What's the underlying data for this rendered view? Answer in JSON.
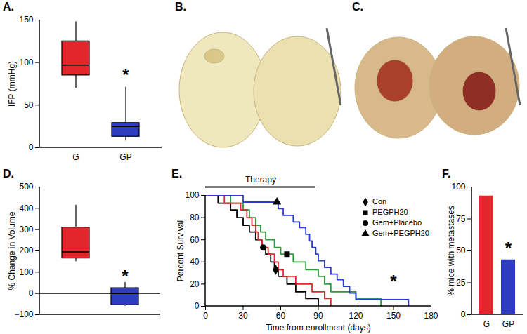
{
  "chart_data": [
    {
      "type": "box",
      "title": "A.",
      "categories": [
        "G",
        "GP"
      ],
      "colors": [
        "#e4262c",
        "#2e3dbf"
      ],
      "boxes": [
        {
          "min": 70,
          "q1": 85,
          "median": 97,
          "q3": 125,
          "max": 148
        },
        {
          "min": 8,
          "q1": 13,
          "median": 25,
          "q3": 29,
          "max": 71
        }
      ],
      "y_label": "IFP (mmHg)",
      "ylim": [
        0,
        150
      ],
      "yticks": [
        0,
        50,
        100,
        150
      ],
      "annotations": [
        {
          "text": "*",
          "x": "GP",
          "y": 85
        }
      ]
    },
    {
      "type": "image",
      "title": "B."
    },
    {
      "type": "image",
      "title": "C."
    },
    {
      "type": "box",
      "title": "D.",
      "categories": [
        "G",
        "GP"
      ],
      "colors": [
        "#e4262c",
        "#2e3dbf"
      ],
      "boxes": [
        {
          "min": 150,
          "q1": 165,
          "median": 195,
          "q3": 310,
          "max": 415
        },
        {
          "min": -60,
          "q1": -55,
          "median": 0,
          "q3": 25,
          "max": 52
        }
      ],
      "y_label": "% Change in Volume",
      "ylim": [
        -100,
        500
      ],
      "yticks": [
        -100,
        0,
        100,
        200,
        300,
        400,
        500
      ],
      "hline": 0,
      "tick_labels": "y",
      "annotations": [
        {
          "text": "*",
          "x": "GP",
          "y": 80
        }
      ]
    },
    {
      "type": "line",
      "title": "E.",
      "x_label": "Time from enrollment (days)",
      "y_label": "Percent Survival",
      "xlim": [
        0,
        180
      ],
      "xticks": [
        0,
        30,
        60,
        90,
        120,
        150,
        180
      ],
      "ylim": [
        0,
        100
      ],
      "yticks": [
        0,
        20,
        40,
        60,
        80,
        100
      ],
      "legend": "upper right",
      "line_style": "step",
      "therapy": {
        "label": "Therapy",
        "x": [
          0,
          88
        ]
      },
      "annotations": [
        {
          "text": "*",
          "x": 150,
          "y": 22
        }
      ],
      "series": [
        {
          "name": "Con",
          "color": "#000000",
          "marker": "diamond",
          "marker_point": [
            56,
            33
          ],
          "x": [
            0,
            10,
            20,
            25,
            30,
            35,
            40,
            45,
            48,
            52,
            55,
            58,
            65,
            72,
            80,
            90
          ],
          "values": [
            100,
            93,
            87,
            80,
            73,
            67,
            60,
            53,
            47,
            40,
            33,
            27,
            20,
            13,
            7,
            0
          ]
        },
        {
          "name": "PEGPH20",
          "color": "#2e9b3a",
          "marker": "square",
          "marker_point": [
            65,
            47
          ],
          "x": [
            0,
            20,
            30,
            35,
            40,
            44,
            48,
            55,
            60,
            70,
            80,
            90,
            95,
            100,
            120,
            140
          ],
          "values": [
            100,
            93,
            87,
            80,
            73,
            67,
            60,
            53,
            47,
            40,
            33,
            27,
            20,
            13,
            7,
            0
          ]
        },
        {
          "name": "Gem+Placebo",
          "color": "#e4262c",
          "marker": "circle",
          "marker_point": [
            46,
            53
          ],
          "x": [
            0,
            15,
            28,
            33,
            37,
            40,
            42,
            45,
            50,
            55,
            58,
            62,
            72,
            85,
            95,
            100
          ],
          "values": [
            100,
            93,
            87,
            80,
            73,
            67,
            60,
            53,
            47,
            40,
            33,
            27,
            20,
            13,
            7,
            0
          ]
        },
        {
          "name": "Gem+PEGPH20",
          "color": "#2b3bd6",
          "marker": "triangle",
          "marker_point": [
            57,
            94
          ],
          "x": [
            0,
            30,
            58,
            62,
            70,
            75,
            80,
            83,
            85,
            88,
            90,
            95,
            100,
            105,
            110,
            115,
            120,
            162
          ],
          "values": [
            100,
            94,
            88,
            82,
            76,
            71,
            65,
            59,
            53,
            47,
            41,
            35,
            29,
            24,
            18,
            12,
            6,
            0
          ]
        }
      ]
    },
    {
      "type": "bar",
      "title": "F.",
      "categories": [
        "G",
        "GP"
      ],
      "values": [
        93,
        43
      ],
      "colors": [
        "#e4262c",
        "#2e3dbf"
      ],
      "y_label": "% mice with metastases",
      "ylim": [
        0,
        100
      ],
      "yticks": [
        0,
        25,
        50,
        75,
        100
      ],
      "annotations": [
        {
          "text": "*",
          "x": "GP",
          "y": 52
        }
      ]
    }
  ]
}
